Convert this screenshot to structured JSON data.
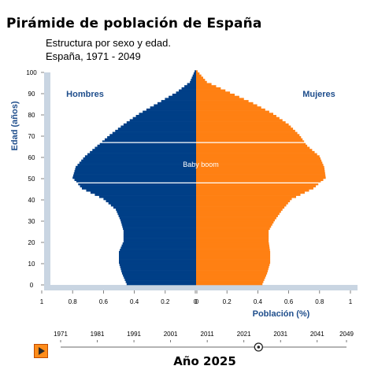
{
  "chart_data": {
    "type": "bar",
    "title": "Pirámide de población de España",
    "subtitle_line1": "Estructura por sexo y edad.",
    "subtitle_line2": "España, 1971 - 2049",
    "ylabel": "Edad (años)",
    "xlabel": "Población (%)",
    "y_ticks": [
      "0",
      "10",
      "20",
      "30",
      "40",
      "50",
      "60",
      "70",
      "80",
      "90",
      "100"
    ],
    "x_ticks": [
      "1",
      "0.8",
      "0.6",
      "0.4",
      "0.2",
      "0",
      "0",
      "0.2",
      "0.4",
      "0.6",
      "0.8",
      "1"
    ],
    "ylim": [
      0,
      100
    ],
    "xlim": [
      -1,
      1
    ],
    "series": [
      {
        "name": "Hombres",
        "color": "#003f87",
        "ages": [
          0,
          5,
          10,
          15,
          20,
          25,
          30,
          35,
          40,
          45,
          50,
          55,
          60,
          65,
          70,
          75,
          80,
          85,
          90,
          95,
          100
        ],
        "values": [
          0.45,
          0.48,
          0.5,
          0.5,
          0.47,
          0.47,
          0.49,
          0.52,
          0.6,
          0.74,
          0.8,
          0.78,
          0.72,
          0.64,
          0.56,
          0.47,
          0.37,
          0.25,
          0.13,
          0.04,
          0.01
        ]
      },
      {
        "name": "Mujeres",
        "color": "#ff8013",
        "ages": [
          0,
          5,
          10,
          15,
          20,
          25,
          30,
          35,
          40,
          45,
          50,
          55,
          60,
          65,
          70,
          75,
          80,
          85,
          90,
          95,
          100
        ],
        "values": [
          0.43,
          0.46,
          0.48,
          0.48,
          0.47,
          0.47,
          0.51,
          0.56,
          0.62,
          0.76,
          0.84,
          0.83,
          0.8,
          0.72,
          0.67,
          0.6,
          0.5,
          0.37,
          0.22,
          0.07,
          0.01
        ]
      }
    ],
    "annotation": {
      "text": "Baby boom",
      "age_from": 48,
      "age_to": 67
    },
    "grid": false,
    "legend_placement": "top-left / top-right"
  },
  "slider": {
    "years": [
      "1971",
      "1981",
      "1991",
      "2001",
      "2011",
      "2021",
      "2031",
      "2041",
      "2049"
    ],
    "current_year": 2025,
    "current_label": "Año 2025",
    "play_icon": "play-icon",
    "accent_color": "#ff8c1a"
  }
}
